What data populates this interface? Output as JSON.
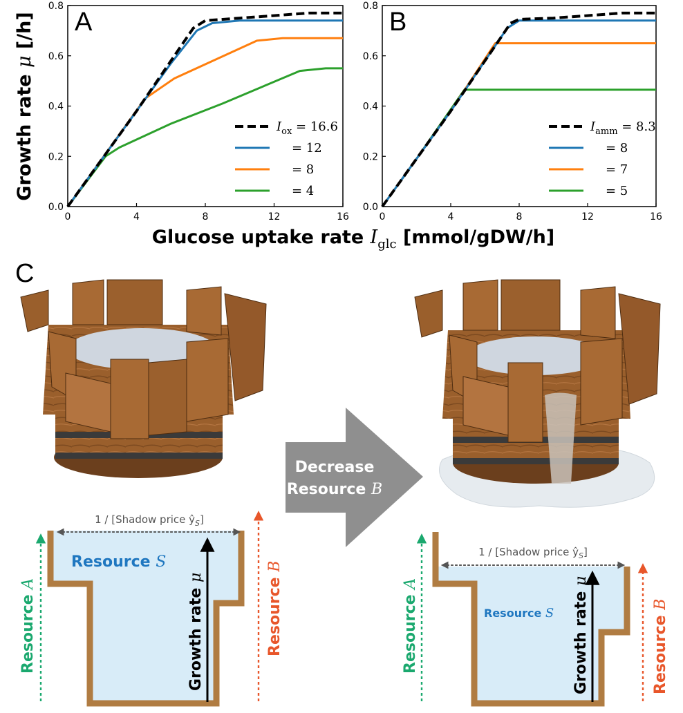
{
  "chart_data": [
    {
      "type": "line",
      "panel": "A",
      "xlabel_main": "Glucose uptake rate",
      "xlabel_var": "I",
      "xlabel_sub": "glc",
      "xlabel_unit": "[mmol/gDW/h]",
      "ylabel_main": "Growth rate",
      "ylabel_var": "μ",
      "ylabel_unit": "[/h]",
      "xlim": [
        0,
        16
      ],
      "ylim": [
        0,
        0.8
      ],
      "xticks": [
        "0",
        "4",
        "8",
        "12",
        "16"
      ],
      "yticks": [
        "0.0",
        "0.2",
        "0.4",
        "0.6",
        "0.8"
      ],
      "legend_position": "lower-right",
      "legend_var": "I",
      "legend_sub": "ox",
      "series": [
        {
          "name": "= 16.6",
          "color": "#000000",
          "dashed": true,
          "x": [
            0,
            2,
            4,
            6,
            7.3,
            8,
            10,
            12,
            14,
            16
          ],
          "y": [
            0,
            0.19,
            0.38,
            0.58,
            0.71,
            0.74,
            0.75,
            0.76,
            0.77,
            0.77
          ]
        },
        {
          "name": "= 12",
          "color": "#1f77b4",
          "dashed": false,
          "x": [
            0,
            2,
            4,
            6,
            7.5,
            8.4,
            10,
            12,
            14,
            16
          ],
          "y": [
            0,
            0.19,
            0.38,
            0.57,
            0.7,
            0.73,
            0.74,
            0.74,
            0.74,
            0.74
          ]
        },
        {
          "name": "= 8",
          "color": "#ff7f0e",
          "dashed": false,
          "x": [
            0,
            2.2,
            4.5,
            6.2,
            11,
            12.5,
            14,
            16
          ],
          "y": [
            0,
            0.21,
            0.43,
            0.51,
            0.66,
            0.67,
            0.67,
            0.67
          ]
        },
        {
          "name": "= 4",
          "color": "#2ca02c",
          "dashed": false,
          "x": [
            0,
            2.2,
            3,
            6,
            9,
            13.5,
            15,
            16
          ],
          "y": [
            0,
            0.2,
            0.235,
            0.33,
            0.41,
            0.54,
            0.55,
            0.55
          ]
        }
      ]
    },
    {
      "type": "line",
      "panel": "B",
      "xlim": [
        0,
        16
      ],
      "ylim": [
        0,
        0.8
      ],
      "xticks": [
        "0",
        "4",
        "8",
        "12",
        "16"
      ],
      "yticks": [
        "0.0",
        "0.2",
        "0.4",
        "0.6",
        "0.8"
      ],
      "legend_position": "lower-right",
      "legend_var": "I",
      "legend_sub": "amm",
      "series": [
        {
          "name": "= 8.3",
          "color": "#000000",
          "dashed": true,
          "x": [
            0,
            2,
            4,
            6,
            7,
            7.5,
            8,
            10,
            12,
            14,
            16
          ],
          "y": [
            0,
            0.19,
            0.38,
            0.58,
            0.68,
            0.73,
            0.745,
            0.75,
            0.76,
            0.77,
            0.77
          ]
        },
        {
          "name": "= 8",
          "color": "#1f77b4",
          "dashed": false,
          "x": [
            0,
            2,
            4,
            6,
            7.3,
            8,
            10,
            12,
            14,
            16
          ],
          "y": [
            0,
            0.19,
            0.38,
            0.58,
            0.71,
            0.74,
            0.74,
            0.74,
            0.74,
            0.74
          ]
        },
        {
          "name": "= 7",
          "color": "#ff7f0e",
          "dashed": false,
          "x": [
            0,
            2,
            4,
            6.6,
            8,
            12,
            16
          ],
          "y": [
            0,
            0.19,
            0.38,
            0.65,
            0.65,
            0.65,
            0.65
          ]
        },
        {
          "name": "= 5",
          "color": "#2ca02c",
          "dashed": false,
          "x": [
            0,
            2,
            4.8,
            8,
            12,
            16
          ],
          "y": [
            0,
            0.19,
            0.465,
            0.465,
            0.465,
            0.465
          ]
        }
      ]
    }
  ],
  "panel_c": {
    "letter": "C",
    "arrow_line1": "Decrease",
    "arrow_line2": "Resource",
    "arrow_var": "B",
    "left": {
      "width_label": "1 / [Shadow price ŷ",
      "width_label_sub": "S",
      "width_label_end": "]",
      "fill_label": "Resource",
      "fill_var": "S",
      "growth_label": "Growth rate",
      "growth_var": "μ",
      "resource_a": "Resource",
      "resource_a_var": "A",
      "resource_b": "Resource",
      "resource_b_var": "B"
    },
    "right": {
      "width_label": "1 / [Shadow price ŷ",
      "width_label_sub": "S",
      "width_label_end": "]",
      "fill_label": "Resource",
      "fill_var": "S",
      "growth_label": "Growth rate",
      "growth_var": "μ",
      "resource_a": "Resource",
      "resource_a_var": "A",
      "resource_b": "Resource",
      "resource_b_var": "B"
    },
    "colors": {
      "water": "#d8ecf8",
      "wall": "#b07c42",
      "resource_s": "#1f77c0",
      "resource_a": "#1aa86e",
      "resource_b": "#e8562a",
      "arrow": "#8f8f8f"
    }
  }
}
